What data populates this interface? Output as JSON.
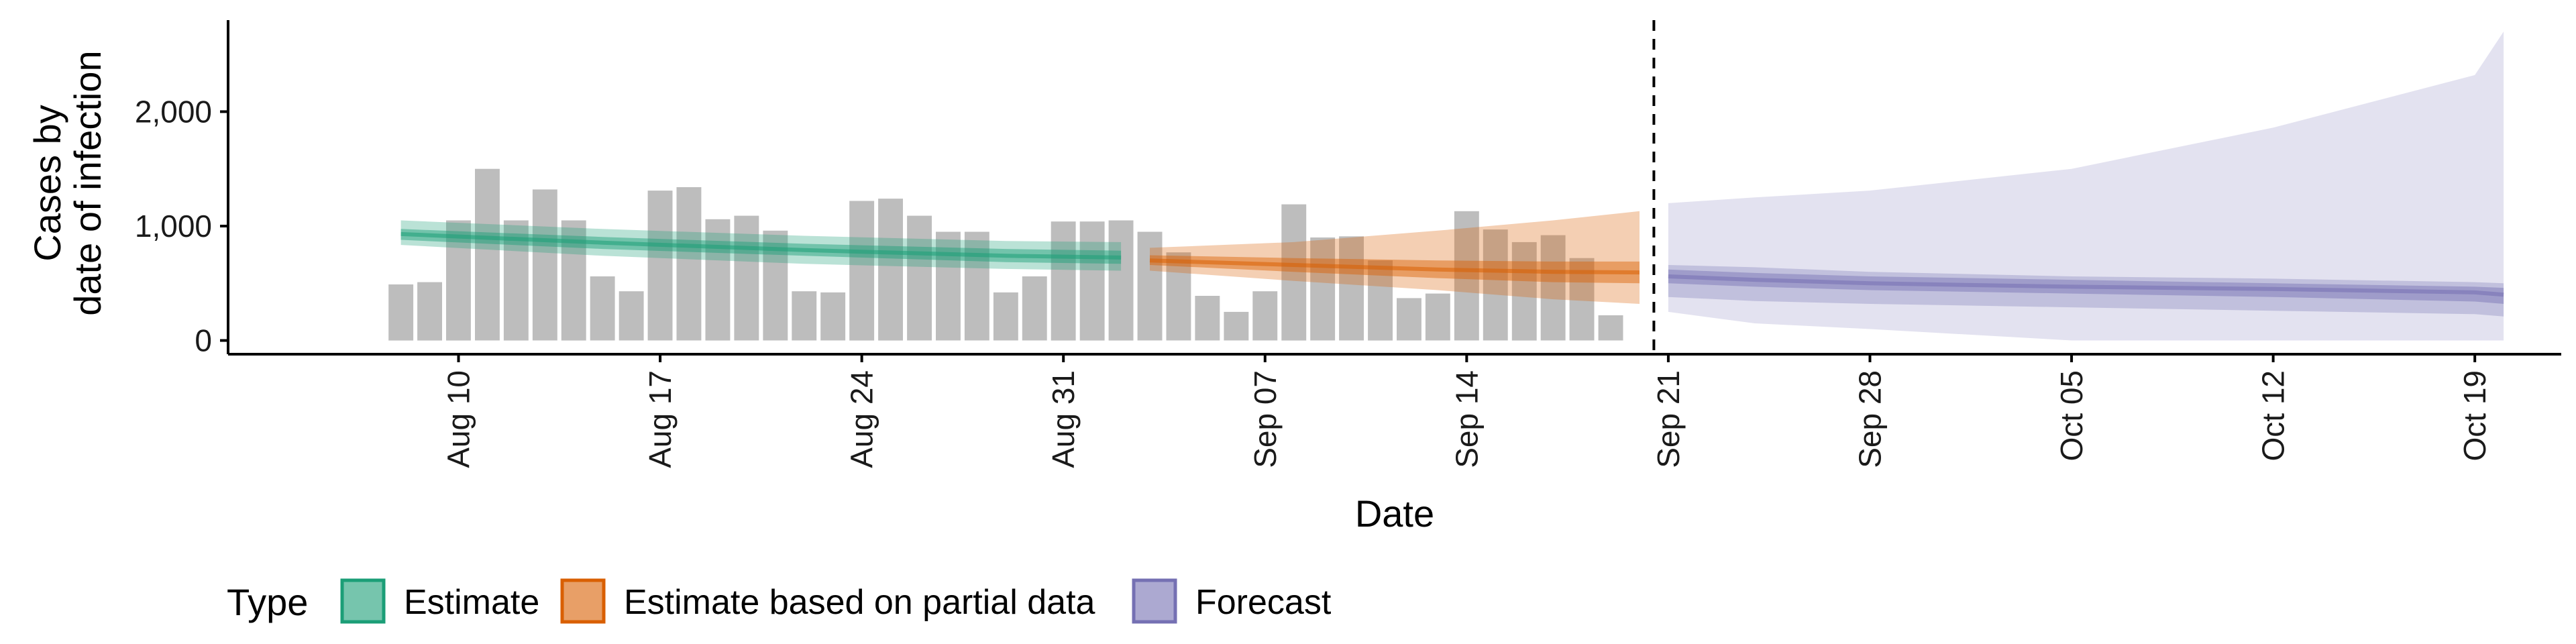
{
  "chart_data": {
    "type": "bar",
    "xlabel": "Date",
    "ylabel": [
      "Cases by",
      "date of infection"
    ],
    "y_ticks": [
      {
        "value": 0,
        "label": "0"
      },
      {
        "value": 1000,
        "label": "1,000"
      },
      {
        "value": 2000,
        "label": "2,000"
      }
    ],
    "ylim": [
      -120,
      2800
    ],
    "xlim": [
      "2020-08-02",
      "2020-10-22"
    ],
    "x_ticks": [
      {
        "date": "2020-08-10",
        "label": "Aug 10"
      },
      {
        "date": "2020-08-17",
        "label": "Aug 17"
      },
      {
        "date": "2020-08-24",
        "label": "Aug 24"
      },
      {
        "date": "2020-08-31",
        "label": "Aug 31"
      },
      {
        "date": "2020-09-07",
        "label": "Sep 07"
      },
      {
        "date": "2020-09-14",
        "label": "Sep 14"
      },
      {
        "date": "2020-09-21",
        "label": "Sep 21"
      },
      {
        "date": "2020-09-28",
        "label": "Sep 28"
      },
      {
        "date": "2020-10-05",
        "label": "Oct 05"
      },
      {
        "date": "2020-10-12",
        "label": "Oct 12"
      },
      {
        "date": "2020-10-19",
        "label": "Oct 19"
      }
    ],
    "bars": {
      "color": "#bdbdbd",
      "start_date": "2020-08-08",
      "values": [
        490,
        510,
        1050,
        1500,
        1050,
        1320,
        1050,
        560,
        430,
        1310,
        1340,
        1060,
        1090,
        960,
        430,
        420,
        1220,
        1240,
        1090,
        950,
        950,
        420,
        560,
        1040,
        1040,
        1050,
        950,
        770,
        390,
        250,
        430,
        1190,
        900,
        910,
        700,
        370,
        410,
        1130,
        970,
        860,
        920,
        720,
        220
      ]
    },
    "forecast_date": "2020-09-20",
    "series": [
      {
        "name": "Estimate",
        "color": "#1b9e77",
        "dates": [
          "2020-08-08",
          "2020-08-15",
          "2020-08-22",
          "2020-08-29",
          "2020-09-02"
        ],
        "median": [
          930,
          855,
          790,
          740,
          725
        ],
        "inner": [
          [
            880,
            975
          ],
          [
            800,
            905
          ],
          [
            740,
            845
          ],
          [
            685,
            800
          ],
          [
            670,
            785
          ]
        ],
        "outer": [
          [
            835,
            1050
          ],
          [
            740,
            975
          ],
          [
            670,
            915
          ],
          [
            625,
            870
          ],
          [
            610,
            860
          ]
        ]
      },
      {
        "name": "Estimate based on partial data",
        "color": "#d95f02",
        "dates": [
          "2020-09-03",
          "2020-09-08",
          "2020-09-13",
          "2020-09-17",
          "2020-09-20"
        ],
        "median": [
          700,
          660,
          620,
          600,
          595
        ],
        "inner": [
          [
            660,
            745
          ],
          [
            600,
            720
          ],
          [
            545,
            700
          ],
          [
            510,
            690
          ],
          [
            500,
            690
          ]
        ],
        "outer": [
          [
            610,
            810
          ],
          [
            520,
            860
          ],
          [
            440,
            960
          ],
          [
            360,
            1050
          ],
          [
            320,
            1130
          ]
        ]
      },
      {
        "name": "Forecast",
        "color": "#7570b3",
        "dates": [
          "2020-09-21",
          "2020-09-24",
          "2020-09-28",
          "2020-10-05",
          "2020-10-12",
          "2020-10-19",
          "2020-10-20"
        ],
        "median": [
          560,
          530,
          500,
          470,
          450,
          420,
          400
        ],
        "inner": [
          [
            500,
            620
          ],
          [
            470,
            590
          ],
          [
            440,
            560
          ],
          [
            410,
            530
          ],
          [
            380,
            500
          ],
          [
            340,
            470
          ],
          [
            320,
            460
          ]
        ],
        "outer": [
          [
            380,
            660
          ],
          [
            345,
            640
          ],
          [
            320,
            600
          ],
          [
            290,
            560
          ],
          [
            260,
            540
          ],
          [
            230,
            510
          ],
          [
            210,
            500
          ]
        ],
        "outer90": [
          [
            250,
            1200
          ],
          [
            150,
            1250
          ],
          [
            100,
            1310
          ],
          [
            0,
            1500
          ],
          [
            0,
            1860
          ],
          [
            0,
            2320
          ],
          [
            0,
            2700
          ]
        ]
      }
    ],
    "legend": {
      "title": "Type",
      "position": "bottom",
      "items": [
        {
          "label": "Estimate",
          "color": "#1b9e77"
        },
        {
          "label": "Estimate based on partial data",
          "color": "#d95f02"
        },
        {
          "label": "Forecast",
          "color": "#7570b3"
        }
      ]
    }
  }
}
